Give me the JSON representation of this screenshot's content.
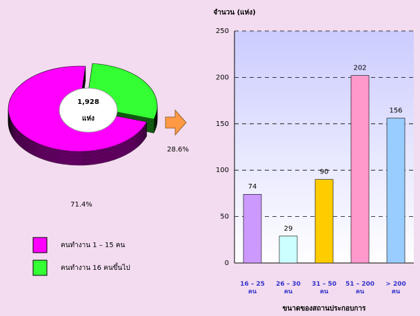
{
  "chart_data": [
    {
      "type": "pie",
      "categories": [
        "คนทำงาน 1 – 15 คน",
        "คนทำงาน 16 คนขึ้นไป"
      ],
      "values": [
        71.4,
        28.6
      ],
      "value_labels": [
        "71.4%",
        "28.6%"
      ],
      "colors": [
        "#ff00ff",
        "#33ff33"
      ],
      "center_label": [
        "1,928",
        "แห่ง"
      ]
    },
    {
      "type": "bar",
      "y_label": "จำนวน (แห่ง)",
      "x_label": "ขนาดของสถานประกอบการ",
      "categories": [
        "16 – 25\nคน",
        "26 – 30\nคน",
        "31 – 50\nคน",
        "51 – 200\nคน",
        "> 200\nคน"
      ],
      "values": [
        74,
        29,
        90,
        202,
        156
      ],
      "colors": [
        "#cc99ff",
        "#ccffff",
        "#ffcc00",
        "#ff99cc",
        "#99ccff"
      ],
      "ylim": [
        0,
        250
      ],
      "yticks": [
        0,
        50,
        100,
        150,
        200,
        250
      ],
      "grid": true
    }
  ]
}
